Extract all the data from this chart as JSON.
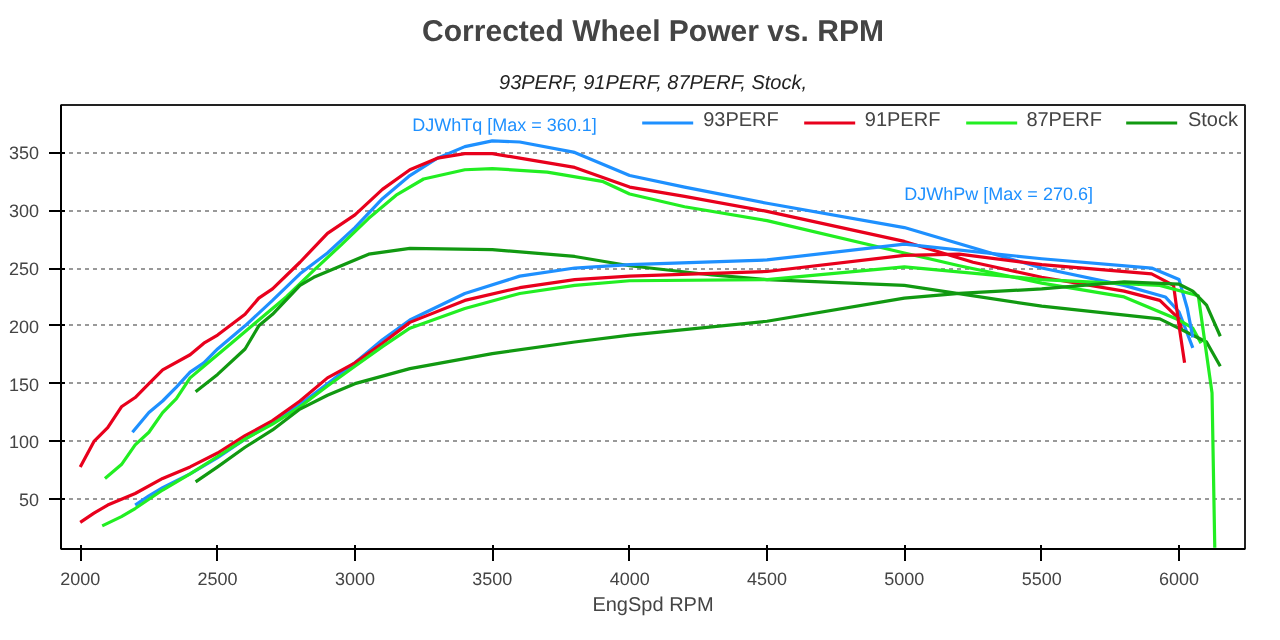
{
  "chart_data": {
    "type": "line",
    "title": "Corrected Wheel Power vs. RPM",
    "subtitle": "93PERF, 91PERF, 87PERF, Stock,",
    "xlabel": "EngSpd RPM",
    "xlim": [
      1930,
      6240
    ],
    "ylim": [
      7,
      391
    ],
    "xticks": [
      2000,
      2500,
      3000,
      3500,
      4000,
      4500,
      5000,
      5500,
      6000
    ],
    "yticks": [
      50,
      100,
      150,
      200,
      250,
      300,
      350
    ],
    "grid": "y",
    "legend": "top",
    "line_style": "solid",
    "marker": "none",
    "annotations": [
      {
        "text": "DJWhTq [Max = 360.1]",
        "x": 3500,
        "y": 360.1
      },
      {
        "text": "DJWhPw [Max = 270.6]",
        "x": 5000,
        "y": 270.6
      }
    ],
    "series": [
      {
        "name": "93PERF",
        "color": "#1e90ff",
        "x": [
          2190,
          2250,
          2300,
          2350,
          2400,
          2450,
          2500,
          2600,
          2700,
          2800,
          2900,
          3000,
          3100,
          3200,
          3300,
          3400,
          3500,
          3600,
          3800,
          4000,
          4200,
          4500,
          5000,
          5500,
          5800,
          5950,
          6000,
          6050
        ],
        "values": [
          108,
          125,
          135,
          147,
          160,
          168,
          180,
          200,
          222,
          245,
          263,
          285,
          310,
          330,
          345,
          355,
          360,
          359,
          350,
          330,
          320,
          306,
          285,
          250,
          235,
          225,
          212,
          181
        ]
      },
      {
        "name": "91PERF",
        "color": "#e8001c",
        "x": [
          2000,
          2050,
          2100,
          2150,
          2200,
          2250,
          2300,
          2400,
          2450,
          2500,
          2600,
          2650,
          2700,
          2800,
          2900,
          3000,
          3100,
          3200,
          3300,
          3400,
          3500,
          3600,
          3800,
          4000,
          4200,
          4500,
          5000,
          5250,
          5500,
          5800,
          5930,
          6000,
          6010
        ],
        "values": [
          78,
          100,
          112,
          130,
          138,
          150,
          162,
          175,
          185,
          192,
          210,
          224,
          232,
          255,
          280,
          296,
          318,
          335,
          345,
          349,
          349,
          345,
          337,
          320,
          312,
          299,
          273,
          255,
          242,
          230,
          222,
          206,
          196
        ]
      },
      {
        "name": "87PERF",
        "color": "#22ee22",
        "x": [
          2090,
          2150,
          2200,
          2250,
          2300,
          2350,
          2400,
          2450,
          2550,
          2650,
          2750,
          2850,
          2950,
          3050,
          3150,
          3250,
          3400,
          3500,
          3700,
          3900,
          4000,
          4200,
          4500,
          5000,
          5200,
          5500,
          5800,
          6000,
          6050,
          6080
        ],
        "values": [
          68,
          80,
          97,
          108,
          125,
          137,
          155,
          165,
          185,
          205,
          225,
          248,
          270,
          293,
          313,
          327,
          335,
          336,
          333,
          325,
          314,
          303,
          291,
          263,
          252,
          237,
          225,
          205,
          198,
          185
        ]
      },
      {
        "name": "Stock",
        "color": "#119911",
        "x": [
          2420,
          2500,
          2600,
          2650,
          2700,
          2800,
          2850,
          2950,
          3050,
          3200,
          3500,
          3800,
          4000,
          4300,
          4500,
          5000,
          5500,
          5930,
          6100,
          6150
        ],
        "values": [
          143,
          158,
          180,
          200,
          210,
          235,
          242,
          252,
          262,
          267,
          266,
          260,
          252,
          244,
          240,
          235,
          217,
          206,
          186,
          165
        ]
      },
      {
        "color": "#1e90ff",
        "x": [
          2200,
          2250,
          2300,
          2400,
          2500,
          2600,
          2700,
          2800,
          2900,
          3000,
          3100,
          3200,
          3400,
          3600,
          3800,
          4000,
          4500,
          5000,
          5500,
          5900,
          6000,
          6030,
          6050
        ],
        "values": [
          45,
          53,
          60,
          72,
          86,
          102,
          116,
          132,
          150,
          168,
          188,
          205,
          228,
          243,
          250,
          253,
          257,
          270.6,
          258,
          250,
          240,
          215,
          190
        ]
      },
      {
        "color": "#e8001c",
        "x": [
          2000,
          2050,
          2100,
          2200,
          2300,
          2400,
          2500,
          2600,
          2700,
          2800,
          2900,
          3000,
          3100,
          3200,
          3400,
          3600,
          3800,
          4000,
          4500,
          5000,
          5200,
          5500,
          5900,
          5980,
          6000,
          6020
        ],
        "values": [
          30,
          38,
          45,
          55,
          68,
          78,
          90,
          105,
          118,
          135,
          155,
          168,
          185,
          203,
          222,
          233,
          240,
          243,
          247,
          261,
          262,
          253,
          245,
          235,
          200,
          168
        ]
      },
      {
        "color": "#22ee22",
        "x": [
          2080,
          2150,
          2200,
          2300,
          2400,
          2500,
          2600,
          2700,
          2800,
          2900,
          3000,
          3100,
          3200,
          3400,
          3600,
          3800,
          4000,
          4500,
          5000,
          5500,
          5930,
          6070,
          6120,
          6130
        ],
        "values": [
          27,
          35,
          42,
          58,
          72,
          87,
          102,
          115,
          130,
          148,
          165,
          182,
          198,
          215,
          228,
          235,
          239,
          240,
          251,
          240,
          235,
          226,
          142,
          8
        ]
      },
      {
        "color": "#119911",
        "x": [
          2420,
          2500,
          2600,
          2700,
          2800,
          2900,
          3000,
          3200,
          3500,
          3800,
          4000,
          4500,
          5000,
          5200,
          5500,
          5800,
          6000,
          6050,
          6100,
          6150
        ],
        "values": [
          65,
          78,
          95,
          110,
          128,
          140,
          150,
          163,
          176,
          186,
          192,
          204,
          224,
          228,
          232,
          238,
          236,
          230,
          218,
          191
        ]
      }
    ]
  }
}
